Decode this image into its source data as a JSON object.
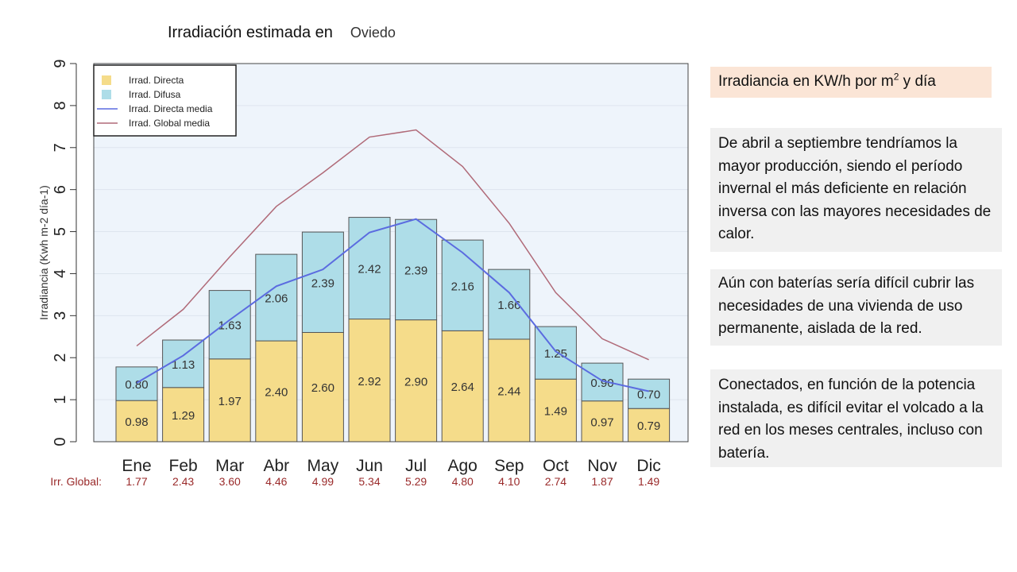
{
  "slide": {
    "title": "Irradiación estimada en",
    "city": "Oviedo",
    "unit_note": {
      "before": "Irradiancia en KW/h por m",
      "sup": "2",
      "after": " y día"
    },
    "notes": [
      "De abril a septiembre tendríamos la mayor producción, siendo el período invernal el más deficiente en relación inversa con las mayores necesidades de calor.",
      "Aún con baterías sería difícil cubrir las necesidades de una vivienda de uso permanente, aislada de la red.",
      "Conectados, en función de la potencia instalada, es difícil evitar el volcado a la red en los meses centrales, incluso con batería."
    ]
  },
  "chart_data": {
    "type": "bar",
    "stacked": true,
    "ylabel": "Irradiancia (Kwh m-2 día-1)",
    "ylim": [
      0,
      9
    ],
    "yticks": [
      "0",
      "1",
      "2",
      "3",
      "4",
      "5",
      "6",
      "7",
      "8",
      "9"
    ],
    "grid": true,
    "legend_position": "top-left",
    "categories": [
      "Ene",
      "Feb",
      "Mar",
      "Abr",
      "May",
      "Jun",
      "Jul",
      "Ago",
      "Sep",
      "Oct",
      "Nov",
      "Dic"
    ],
    "series": [
      {
        "name": "Irrad. Directa",
        "kind": "bar",
        "color": "#f5dc8a",
        "values": [
          0.98,
          1.29,
          1.97,
          2.4,
          2.6,
          2.92,
          2.9,
          2.64,
          2.44,
          1.49,
          0.97,
          0.79
        ],
        "labels": [
          "0.98",
          "1.29",
          "1.97",
          "2.40",
          "2.60",
          "2.92",
          "2.90",
          "2.64",
          "2.44",
          "1.49",
          "0.97",
          "0.79"
        ]
      },
      {
        "name": "Irrad. Difusa",
        "kind": "bar",
        "color": "#aedde8",
        "values": [
          0.8,
          1.13,
          1.63,
          2.06,
          2.39,
          2.42,
          2.39,
          2.16,
          1.66,
          1.25,
          0.9,
          0.7
        ],
        "labels": [
          "0.80",
          "1.13",
          "1.63",
          "2.06",
          "2.39",
          "2.42",
          "2.39",
          "2.16",
          "1.66",
          "1.25",
          "0.90",
          "0.70"
        ]
      },
      {
        "name": "Irrad. Directa media",
        "kind": "line",
        "color": "#5b6be0",
        "values": [
          1.4,
          2.05,
          2.9,
          3.7,
          4.1,
          4.98,
          5.3,
          4.5,
          3.55,
          2.15,
          1.45,
          1.2
        ]
      },
      {
        "name": "Irrad. Global media",
        "kind": "line",
        "color": "#b06a78",
        "values": [
          2.28,
          3.15,
          4.4,
          5.6,
          6.4,
          7.25,
          7.42,
          6.55,
          5.2,
          3.55,
          2.45,
          1.95
        ]
      }
    ],
    "global_row": {
      "label": "Irr. Global:",
      "values": [
        "1.77",
        "2.43",
        "3.60",
        "4.46",
        "4.99",
        "5.34",
        "5.29",
        "4.80",
        "4.10",
        "2.74",
        "1.87",
        "1.49"
      ],
      "color": "#9a2a2a"
    }
  }
}
